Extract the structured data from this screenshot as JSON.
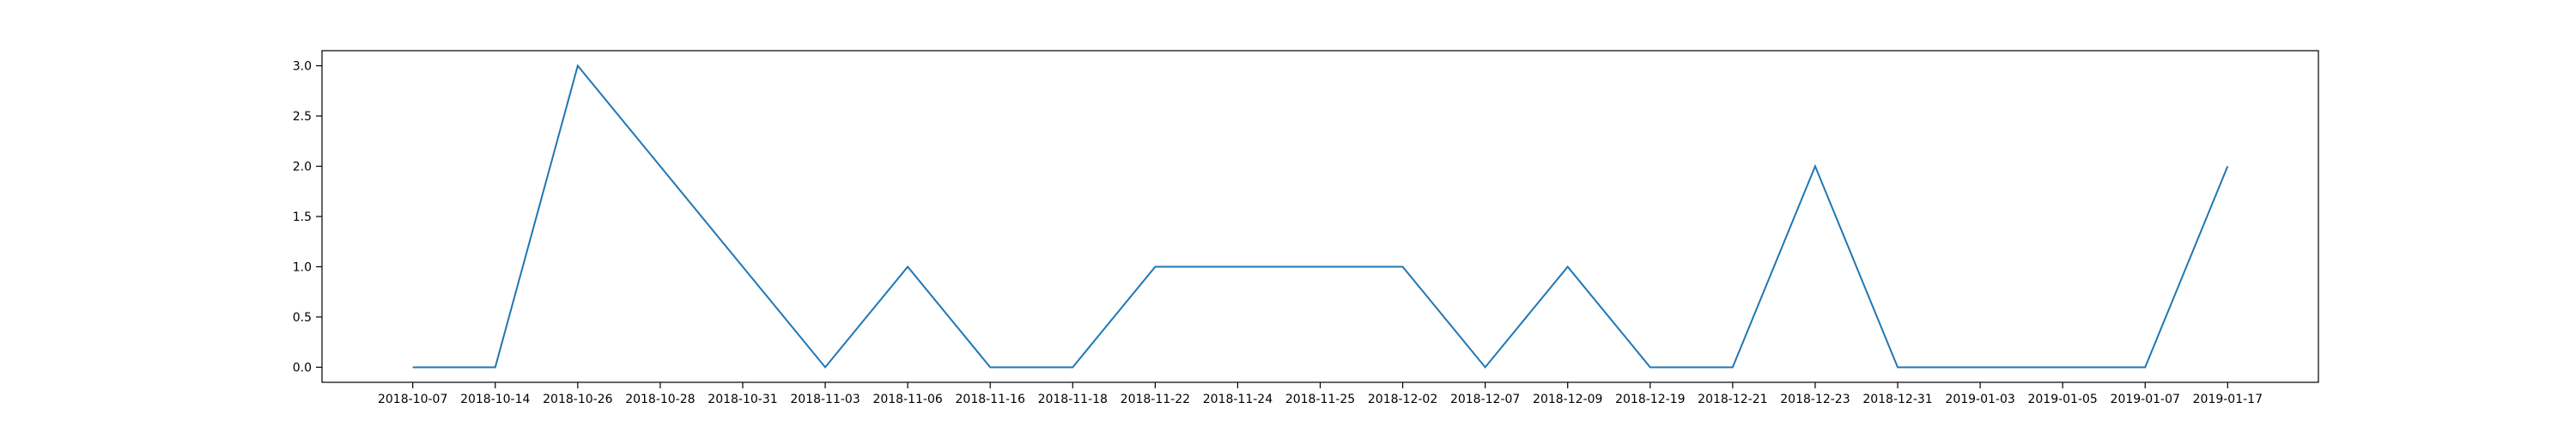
{
  "chart_data": {
    "type": "line",
    "title": "",
    "xlabel": "",
    "ylabel": "",
    "categories": [
      "2018-10-07",
      "2018-10-14",
      "2018-10-26",
      "2018-10-28",
      "2018-10-31",
      "2018-11-03",
      "2018-11-06",
      "2018-11-16",
      "2018-11-18",
      "2018-11-22",
      "2018-11-24",
      "2018-11-25",
      "2018-12-02",
      "2018-12-07",
      "2018-12-09",
      "2018-12-19",
      "2018-12-21",
      "2018-12-23",
      "2018-12-31",
      "2019-01-03",
      "2019-01-05",
      "2019-01-07",
      "2019-01-17"
    ],
    "series": [
      {
        "values": [
          0,
          0,
          3,
          2,
          1,
          0,
          1,
          0,
          0,
          1,
          1,
          1,
          1,
          0,
          1,
          0,
          0,
          2,
          0,
          0,
          0,
          0,
          2
        ],
        "color": "#1f77b4"
      }
    ],
    "yticks": [
      "0.0",
      "0.5",
      "1.0",
      "1.5",
      "2.0",
      "2.5",
      "3.0"
    ],
    "ylim": [
      -0.15,
      3.15
    ],
    "grid": false,
    "legend": "none"
  }
}
